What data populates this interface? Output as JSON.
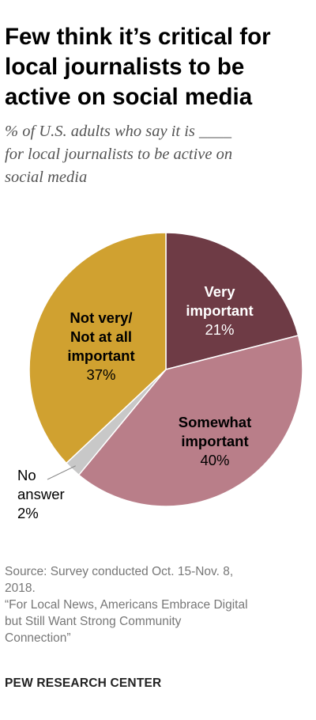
{
  "title_lines": [
    "Few think it’s critical for",
    "local journalists to be",
    "active on social media"
  ],
  "subtitle_lines": [
    "% of U.S. adults who say it is ____",
    "for local journalists to be active on",
    "social media"
  ],
  "chart_data": {
    "type": "pie",
    "start_angle_deg": 0,
    "direction": "clockwise",
    "slices": [
      {
        "label_lines": [
          "Very",
          "important"
        ],
        "value": 21,
        "value_label": "21%",
        "color": "#6e3b45",
        "label_color": "#ffffff"
      },
      {
        "label_lines": [
          "Somewhat",
          "important"
        ],
        "value": 40,
        "value_label": "40%",
        "color": "#b97e89",
        "label_color": "#000000"
      },
      {
        "label_lines": [
          "No",
          "answer"
        ],
        "value": 2,
        "value_label": "2%",
        "color": "#c8c8c8",
        "label_color": "#000000",
        "outside_label": true
      },
      {
        "label_lines": [
          "Not very/",
          "Not at all",
          "important"
        ],
        "value": 37,
        "value_label": "37%",
        "color": "#d0a130",
        "label_color": "#000000"
      }
    ]
  },
  "source_lines": [
    "Source: Survey conducted Oct. 15-Nov. 8,",
    "2018.",
    "“For Local News, Americans Embrace Digital",
    "but Still Want Strong Community",
    "Connection”"
  ],
  "brand": "PEW RESEARCH CENTER"
}
